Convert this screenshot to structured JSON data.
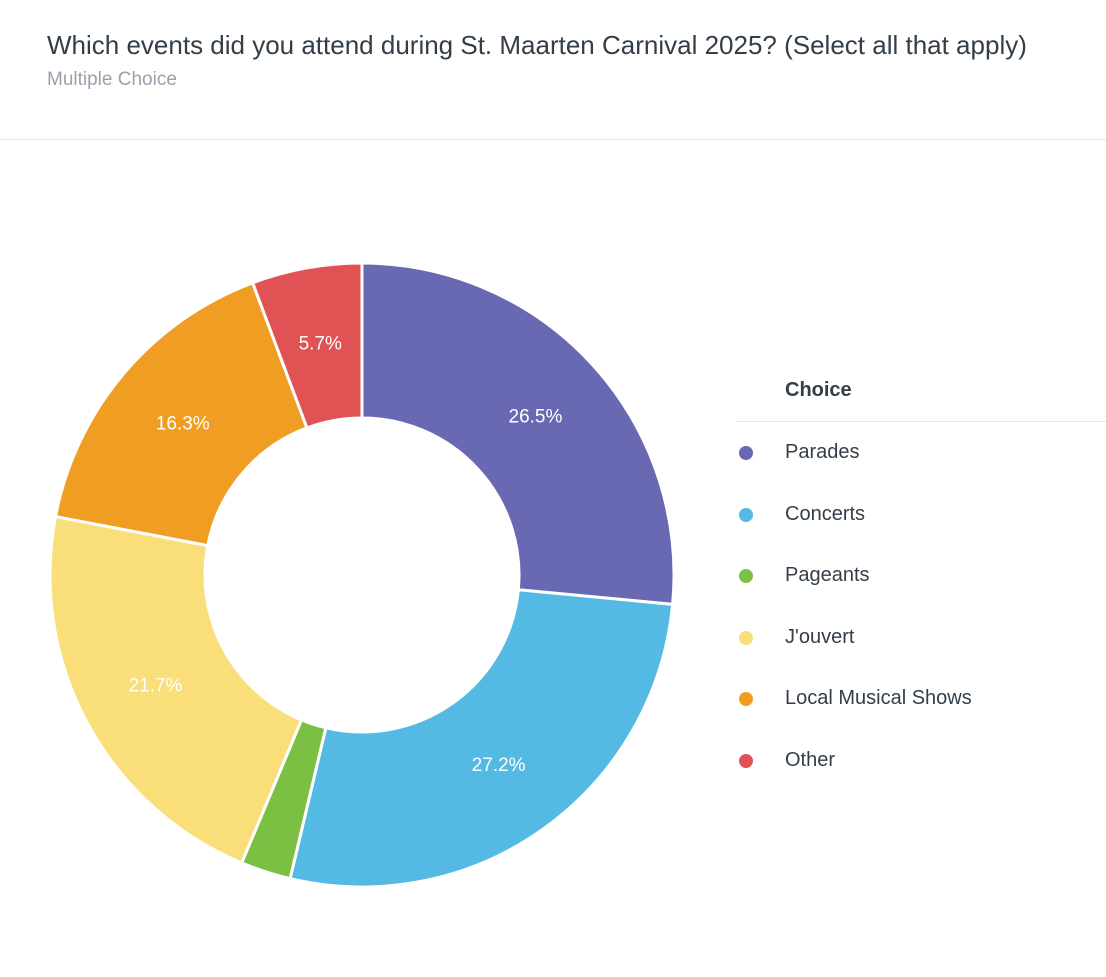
{
  "header": {
    "title": "Which events did you attend during St. Maarten Carnival 2025? (Select all that apply)",
    "question_type": "Multiple Choice"
  },
  "legend": {
    "heading": "Choice"
  },
  "chart_data": {
    "type": "pie",
    "donut": true,
    "title": "",
    "legend_placement": "right",
    "categories": [
      "Parades",
      "Concerts",
      "Pageants",
      "J'ouvert",
      "Local Musical Shows",
      "Other"
    ],
    "values": [
      26.5,
      27.2,
      2.6,
      21.7,
      16.3,
      5.7
    ],
    "labels": [
      "26.5%",
      "27.2%",
      "",
      "21.7%",
      "16.3%",
      "5.7%"
    ],
    "colors": [
      "#6869b2",
      "#54b9e3",
      "#7cc043",
      "#f9de79",
      "#f09e23",
      "#e05253"
    ]
  }
}
